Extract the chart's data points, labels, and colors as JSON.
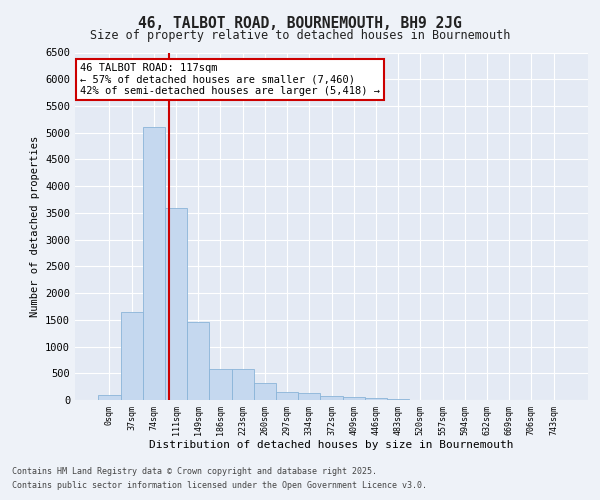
{
  "title1": "46, TALBOT ROAD, BOURNEMOUTH, BH9 2JG",
  "title2": "Size of property relative to detached houses in Bournemouth",
  "xlabel": "Distribution of detached houses by size in Bournemouth",
  "ylabel": "Number of detached properties",
  "bin_labels": [
    "0sqm",
    "37sqm",
    "74sqm",
    "111sqm",
    "149sqm",
    "186sqm",
    "223sqm",
    "260sqm",
    "297sqm",
    "334sqm",
    "372sqm",
    "409sqm",
    "446sqm",
    "483sqm",
    "520sqm",
    "557sqm",
    "594sqm",
    "632sqm",
    "669sqm",
    "706sqm",
    "743sqm"
  ],
  "bar_values": [
    100,
    1650,
    5100,
    3600,
    1450,
    580,
    580,
    320,
    155,
    130,
    70,
    50,
    30,
    10,
    5,
    3,
    2,
    1,
    1,
    0,
    0
  ],
  "bar_color": "#c5d8ef",
  "bar_edgecolor": "#8ab4d8",
  "vline_color": "#cc0000",
  "annotation_text": "46 TALBOT ROAD: 117sqm\n← 57% of detached houses are smaller (7,460)\n42% of semi-detached houses are larger (5,418) →",
  "annotation_box_color": "#cc0000",
  "ylim": [
    0,
    6500
  ],
  "yticks": [
    0,
    500,
    1000,
    1500,
    2000,
    2500,
    3000,
    3500,
    4000,
    4500,
    5000,
    5500,
    6000,
    6500
  ],
  "background_color": "#eef2f8",
  "plot_background": "#e4eaf4",
  "grid_color": "#ffffff",
  "footer1": "Contains HM Land Registry data © Crown copyright and database right 2025.",
  "footer2": "Contains public sector information licensed under the Open Government Licence v3.0."
}
